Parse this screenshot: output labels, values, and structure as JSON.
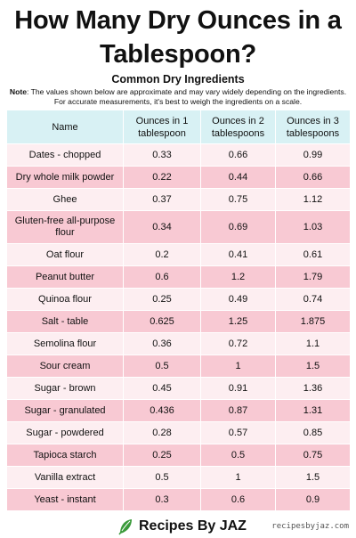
{
  "title": "How Many Dry Ounces in a Tablespoon?",
  "subtitle": "Common Dry Ingredients",
  "note_label": "Note",
  "note_text": ": The values shown below are approximate and may vary widely depending on the ingredients. For accurate measurements, it's best to weigh the ingredients on a scale.",
  "table": {
    "headers": [
      "Name",
      "Ounces in 1 tablespoon",
      "Ounces in 2 tablespoons",
      "Ounces in 3 tablespoons"
    ],
    "rows": [
      [
        "Dates - chopped",
        "0.33",
        "0.66",
        "0.99"
      ],
      [
        "Dry whole milk powder",
        "0.22",
        "0.44",
        "0.66"
      ],
      [
        "Ghee",
        "0.37",
        "0.75",
        "1.12"
      ],
      [
        "Gluten-free all-purpose flour",
        "0.34",
        "0.69",
        "1.03"
      ],
      [
        "Oat flour",
        "0.2",
        "0.41",
        "0.61"
      ],
      [
        "Peanut butter",
        "0.6",
        "1.2",
        "1.79"
      ],
      [
        "Quinoa flour",
        "0.25",
        "0.49",
        "0.74"
      ],
      [
        "Salt - table",
        "0.625",
        "1.25",
        "1.875"
      ],
      [
        "Semolina flour",
        "0.36",
        "0.72",
        "1.1"
      ],
      [
        "Sour cream",
        "0.5",
        "1",
        "1.5"
      ],
      [
        "Sugar - brown",
        "0.45",
        "0.91",
        "1.36"
      ],
      [
        "Sugar - granulated",
        "0.436",
        "0.87",
        "1.31"
      ],
      [
        "Sugar - powdered",
        "0.28",
        "0.57",
        "0.85"
      ],
      [
        "Tapioca starch",
        "0.25",
        "0.5",
        "0.75"
      ],
      [
        "Vanilla extract",
        "0.5",
        "1",
        "1.5"
      ],
      [
        "Yeast - instant",
        "0.3",
        "0.6",
        "0.9"
      ]
    ]
  },
  "footer": {
    "brand": "Recipes By JAZ",
    "brand_icon": "leaf-icon",
    "website": "recipesbyjaz.com"
  },
  "colors": {
    "header_bg": "#d8f1f4",
    "row_light": "#fdeef1",
    "row_dark": "#f8c9d3",
    "leaf_green": "#3a9a3a"
  }
}
